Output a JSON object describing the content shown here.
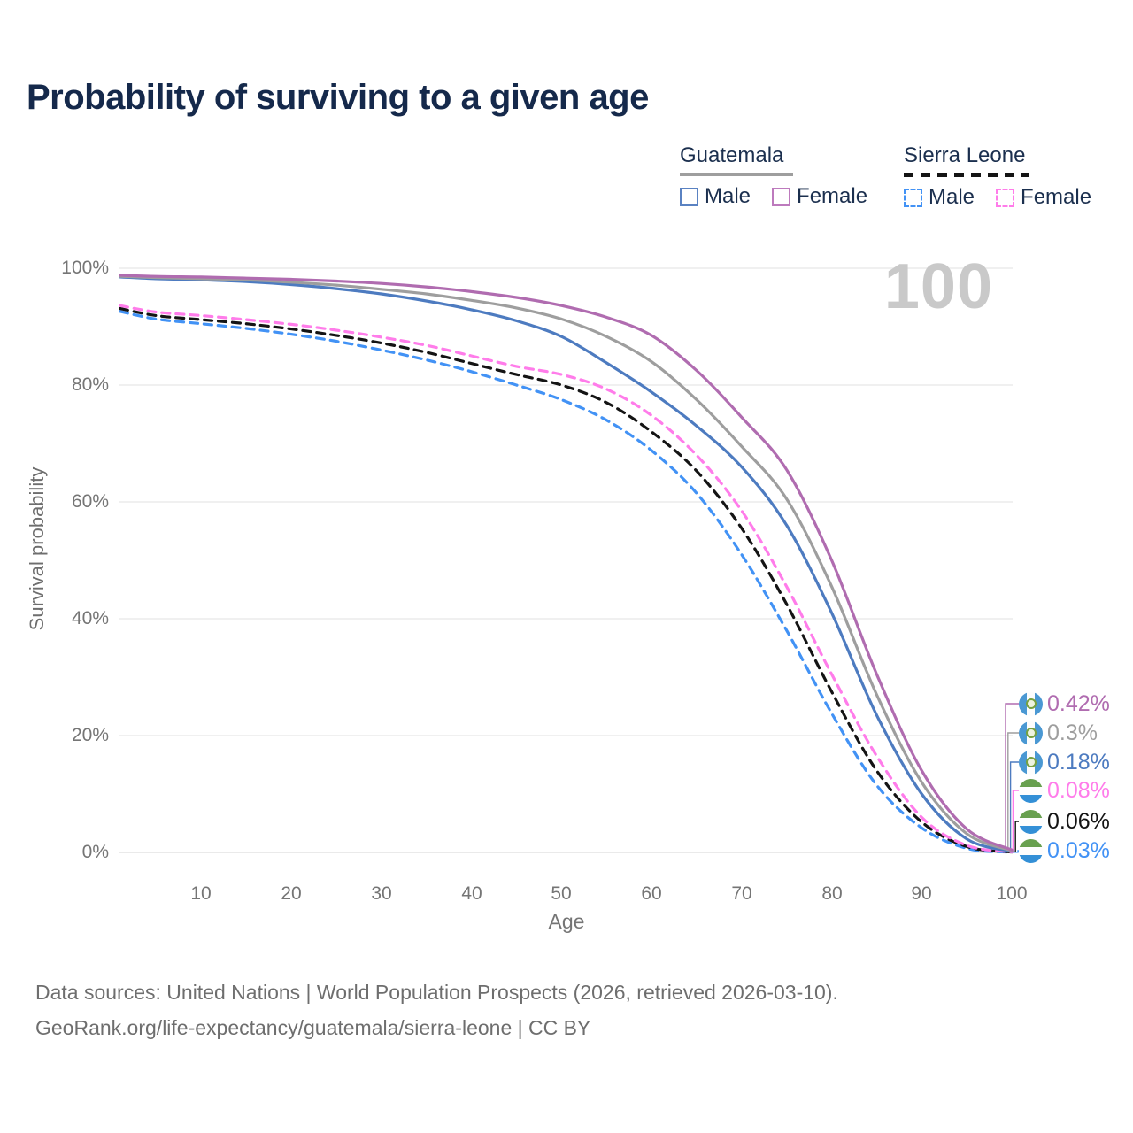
{
  "title": "Probability of surviving to a given age",
  "watermark": "100",
  "legend": {
    "groups": [
      {
        "title": "Guatemala",
        "line_style": "solid",
        "items": [
          {
            "label": "Male",
            "color": "#5a82c2"
          },
          {
            "label": "Female",
            "color": "#bd7abd"
          }
        ]
      },
      {
        "title": "Sierra Leone",
        "line_style": "dashed",
        "items": [
          {
            "label": "Male",
            "color": "#4292f5"
          },
          {
            "label": "Female",
            "color": "#ff7cea"
          }
        ]
      }
    ]
  },
  "chart_data": {
    "type": "line",
    "title": "Probability of surviving to a given age",
    "xlabel": "Age",
    "ylabel": "Survival probability",
    "x_tick_labels": [
      "10",
      "20",
      "30",
      "40",
      "50",
      "60",
      "70",
      "80",
      "90",
      "100"
    ],
    "y_tick_labels": [
      "100%",
      "80%",
      "60%",
      "40%",
      "20%",
      "0%"
    ],
    "xlim": [
      1,
      100
    ],
    "ylim": [
      0,
      100
    ],
    "grid": "horizontal",
    "series": [
      {
        "id": "sl-male",
        "name": "Sierra Leone Male",
        "color": "#4292f5",
        "dashed": true,
        "end_value_label": "0.03%",
        "points": [
          [
            1,
            92.6
          ],
          [
            5,
            91.3
          ],
          [
            10,
            90.5
          ],
          [
            15,
            89.7
          ],
          [
            20,
            88.7
          ],
          [
            25,
            87.5
          ],
          [
            30,
            86.0
          ],
          [
            35,
            84.3
          ],
          [
            40,
            82.3
          ],
          [
            45,
            80.0
          ],
          [
            50,
            77.5
          ],
          [
            55,
            74.0
          ],
          [
            60,
            68.8
          ],
          [
            65,
            61.5
          ],
          [
            70,
            51.0
          ],
          [
            75,
            38.0
          ],
          [
            80,
            23.8
          ],
          [
            85,
            11.5
          ],
          [
            90,
            4.2
          ],
          [
            95,
            0.7
          ],
          [
            100,
            0.03
          ]
        ]
      },
      {
        "id": "sl-all",
        "name": "Sierra Leone",
        "color": "#141414",
        "dashed": true,
        "end_value_label": "0.06%",
        "points": [
          [
            1,
            93.1
          ],
          [
            5,
            91.9
          ],
          [
            10,
            91.2
          ],
          [
            15,
            90.5
          ],
          [
            20,
            89.6
          ],
          [
            25,
            88.5
          ],
          [
            30,
            87.2
          ],
          [
            35,
            85.6
          ],
          [
            40,
            83.7
          ],
          [
            45,
            81.8
          ],
          [
            50,
            80.0
          ],
          [
            55,
            77.0
          ],
          [
            60,
            72.0
          ],
          [
            65,
            65.3
          ],
          [
            70,
            55.5
          ],
          [
            75,
            42.5
          ],
          [
            80,
            27.5
          ],
          [
            85,
            14.0
          ],
          [
            90,
            5.2
          ],
          [
            95,
            1.0
          ],
          [
            100,
            0.06
          ]
        ]
      },
      {
        "id": "sl-female",
        "name": "Sierra Leone Female",
        "color": "#ff7cea",
        "dashed": true,
        "end_value_label": "0.08%",
        "points": [
          [
            1,
            93.6
          ],
          [
            5,
            92.5
          ],
          [
            10,
            91.9
          ],
          [
            15,
            91.2
          ],
          [
            20,
            90.4
          ],
          [
            25,
            89.4
          ],
          [
            30,
            88.2
          ],
          [
            35,
            86.8
          ],
          [
            40,
            85.0
          ],
          [
            45,
            83.2
          ],
          [
            50,
            81.8
          ],
          [
            55,
            79.3
          ],
          [
            60,
            74.8
          ],
          [
            65,
            68.0
          ],
          [
            70,
            58.5
          ],
          [
            75,
            45.5
          ],
          [
            80,
            30.5
          ],
          [
            85,
            16.5
          ],
          [
            90,
            6.0
          ],
          [
            95,
            1.2
          ],
          [
            100,
            0.08
          ]
        ]
      },
      {
        "id": "gt-male",
        "name": "Guatemala Male",
        "color": "#4d7bc0",
        "dashed": false,
        "end_value_label": "0.18%",
        "points": [
          [
            1,
            98.5
          ],
          [
            5,
            98.2
          ],
          [
            10,
            98.0
          ],
          [
            15,
            97.7
          ],
          [
            20,
            97.2
          ],
          [
            25,
            96.5
          ],
          [
            30,
            95.6
          ],
          [
            35,
            94.4
          ],
          [
            40,
            92.9
          ],
          [
            45,
            91.0
          ],
          [
            50,
            88.3
          ],
          [
            55,
            83.8
          ],
          [
            60,
            78.8
          ],
          [
            65,
            73.0
          ],
          [
            70,
            66.0
          ],
          [
            75,
            56.0
          ],
          [
            80,
            41.0
          ],
          [
            85,
            23.5
          ],
          [
            90,
            10.0
          ],
          [
            95,
            2.3
          ],
          [
            100,
            0.18
          ]
        ]
      },
      {
        "id": "gt-all",
        "name": "Guatemala",
        "color": "#9e9e9e",
        "dashed": false,
        "end_value_label": "0.3%",
        "points": [
          [
            1,
            98.6
          ],
          [
            5,
            98.4
          ],
          [
            10,
            98.2
          ],
          [
            15,
            98.0
          ],
          [
            20,
            97.6
          ],
          [
            25,
            97.1
          ],
          [
            30,
            96.4
          ],
          [
            35,
            95.6
          ],
          [
            40,
            94.5
          ],
          [
            45,
            93.2
          ],
          [
            50,
            91.3
          ],
          [
            55,
            88.3
          ],
          [
            60,
            84.0
          ],
          [
            65,
            77.5
          ],
          [
            70,
            69.5
          ],
          [
            75,
            60.5
          ],
          [
            80,
            45.5
          ],
          [
            85,
            27.0
          ],
          [
            90,
            12.0
          ],
          [
            95,
            3.2
          ],
          [
            100,
            0.3
          ]
        ]
      },
      {
        "id": "gt-female",
        "name": "Guatemala Female",
        "color": "#b06cb0",
        "dashed": false,
        "end_value_label": "0.42%",
        "points": [
          [
            1,
            98.8
          ],
          [
            5,
            98.6
          ],
          [
            10,
            98.5
          ],
          [
            15,
            98.3
          ],
          [
            20,
            98.1
          ],
          [
            25,
            97.8
          ],
          [
            30,
            97.4
          ],
          [
            35,
            96.8
          ],
          [
            40,
            96.0
          ],
          [
            45,
            95.0
          ],
          [
            50,
            93.6
          ],
          [
            55,
            91.6
          ],
          [
            60,
            88.5
          ],
          [
            65,
            82.5
          ],
          [
            70,
            74.5
          ],
          [
            75,
            65.5
          ],
          [
            80,
            50.0
          ],
          [
            85,
            30.5
          ],
          [
            90,
            14.0
          ],
          [
            95,
            4.0
          ],
          [
            100,
            0.42
          ]
        ]
      }
    ],
    "end_labels": [
      {
        "value": "0.42%",
        "series_id": "gt-female",
        "flag": "guatemala",
        "color": "#b06cb0"
      },
      {
        "value": "0.3%",
        "series_id": "gt-all",
        "flag": "guatemala",
        "color": "#9e9e9e"
      },
      {
        "value": "0.18%",
        "series_id": "gt-male",
        "flag": "guatemala",
        "color": "#4d7bc0"
      },
      {
        "value": "0.08%",
        "series_id": "sl-female",
        "flag": "sierra-leone",
        "color": "#ff7cea"
      },
      {
        "value": "0.06%",
        "series_id": "sl-all",
        "flag": "sierra-leone",
        "color": "#141414"
      },
      {
        "value": "0.03%",
        "series_id": "sl-male",
        "flag": "sierra-leone",
        "color": "#4292f5"
      }
    ]
  },
  "footer": {
    "line1": "Data sources: United Nations | World Population Prospects (2026, retrieved 2026-03-10).",
    "line2": "GeoRank.org/life-expectancy/guatemala/sierra-leone | CC BY"
  }
}
